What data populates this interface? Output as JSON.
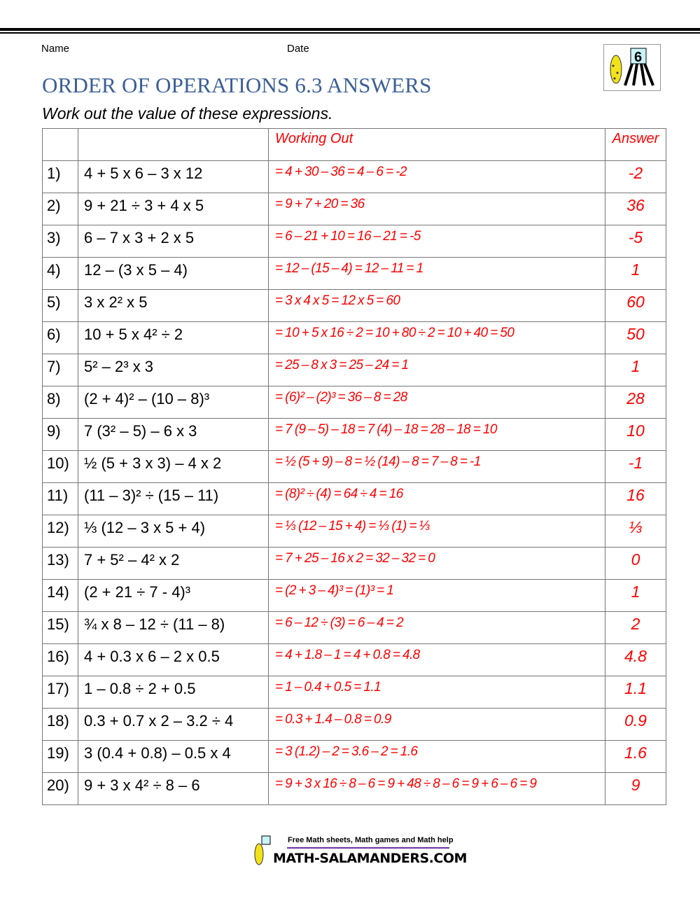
{
  "header": {
    "name_label": "Name",
    "date_label": "Date",
    "title": "ORDER OF OPERATIONS 6.3 ANSWERS",
    "instructions": "Work out the value of these expressions.",
    "logo_grade": "6"
  },
  "colors": {
    "title": "#3a5f96",
    "answer": "#ff0000"
  },
  "table": {
    "headers": {
      "working": "Working Out",
      "answer": "Answer"
    },
    "rows": [
      {
        "num": "1)",
        "expr": "4 + 5 x 6 – 3 x 12",
        "work": "= 4 + 30 – 36 = 4 – 6 = -2",
        "answer": "-2"
      },
      {
        "num": "2)",
        "expr": "9 + 21 ÷ 3 + 4 x 5",
        "work": "= 9 + 7 + 20 = 36",
        "answer": "36"
      },
      {
        "num": "3)",
        "expr": "6 – 7 x 3 + 2 x 5",
        "work": "= 6 – 21 + 10 = 16 – 21 = -5",
        "answer": "-5"
      },
      {
        "num": "4)",
        "expr": "12 – (3 x 5 – 4)",
        "work": "= 12 – (15 – 4) = 12 – 11 = 1",
        "answer": "1"
      },
      {
        "num": "5)",
        "expr": "3 x 2² x 5",
        "work": "= 3 x 4 x 5 = 12 x 5 = 60",
        "answer": "60"
      },
      {
        "num": "6)",
        "expr": "10 + 5 x 4² ÷ 2",
        "work": "= 10 + 5 x 16 ÷ 2 = 10 + 80 ÷ 2 = 10 + 40 = 50",
        "answer": "50"
      },
      {
        "num": "7)",
        "expr": "5² – 2³ x 3",
        "work": "= 25 – 8 x 3 = 25 – 24 = 1",
        "answer": "1"
      },
      {
        "num": "8)",
        "expr": "(2 + 4)² – (10 – 8)³",
        "work": "= (6)² – (2)³ = 36 – 8 = 28",
        "answer": "28"
      },
      {
        "num": "9)",
        "expr": "7 (3² – 5) – 6 x 3",
        "work": "= 7 (9 – 5) – 18 = 7 (4) – 18 = 28 – 18 = 10",
        "answer": "10"
      },
      {
        "num": "10)",
        "expr": "½ (5 + 3 x 3) – 4 x 2",
        "work": "= ½ (5 + 9) – 8 = ½ (14) – 8 = 7 – 8 = -1",
        "answer": "-1"
      },
      {
        "num": "11)",
        "expr": "(11 – 3)² ÷ (15 – 11)",
        "work": "= (8)² ÷ (4) = 64 ÷ 4 = 16",
        "answer": "16"
      },
      {
        "num": "12)",
        "expr": "⅓ (12 – 3 x 5 + 4)",
        "work": "= ⅓ (12 – 15 + 4) = ⅓ (1) = ⅓",
        "answer": "⅓"
      },
      {
        "num": "13)",
        "expr": "7 + 5² – 4² x 2",
        "work": "= 7 + 25 – 16 x 2 = 32 – 32 = 0",
        "answer": "0"
      },
      {
        "num": "14)",
        "expr": "(2 + 21 ÷ 7 - 4)³",
        "work": "= (2 + 3 – 4)³ = (1)³ = 1",
        "answer": "1"
      },
      {
        "num": "15)",
        "expr": "¾ x 8 – 12 ÷ (11 – 8)",
        "work": "= 6 – 12 ÷ (3) = 6 – 4 = 2",
        "answer": "2"
      },
      {
        "num": "16)",
        "expr": "4 + 0.3 x 6 – 2 x 0.5",
        "work": "= 4 + 1.8 – 1 = 4 + 0.8 = 4.8",
        "answer": "4.8"
      },
      {
        "num": "17)",
        "expr": "1 – 0.8 ÷ 2 + 0.5",
        "work": "= 1 – 0.4 + 0.5 = 1.1",
        "answer": "1.1"
      },
      {
        "num": "18)",
        "expr": "0.3 + 0.7 x 2 – 3.2 ÷ 4",
        "work": "= 0.3 + 1.4 – 0.8 = 0.9",
        "answer": "0.9"
      },
      {
        "num": "19)",
        "expr": "3 (0.4 + 0.8) – 0.5 x 4",
        "work": "= 3 (1.2) – 2 = 3.6 – 2 = 1.6",
        "answer": "1.6"
      },
      {
        "num": "20)",
        "expr": "9 + 3 x 4² ÷ 8 – 6",
        "work": "= 9 + 3 x 16 ÷ 8 – 6 = 9 + 48 ÷ 8 – 6 = 9 + 6 – 6 = 9",
        "answer": "9"
      }
    ]
  },
  "footer": {
    "tagline": "Free Math sheets, Math games and Math help",
    "site": "MATH-SALAMANDERS.COM"
  }
}
